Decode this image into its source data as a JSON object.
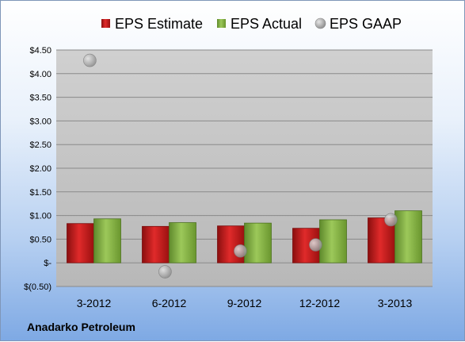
{
  "company": "Anadarko Petroleum",
  "colors": {
    "estimate": "#cc1c1c",
    "actual": "#86b446",
    "gaap": "#a6a6a6",
    "plot_bg": "#c0c0c0"
  },
  "chart_data": {
    "type": "bar",
    "categories": [
      "3-2012",
      "6-2012",
      "9-2012",
      "12-2012",
      "3-2013"
    ],
    "series": [
      {
        "name": "EPS Estimate",
        "kind": "bar",
        "values": [
          0.83,
          0.77,
          0.78,
          0.73,
          0.95
        ]
      },
      {
        "name": "EPS Actual",
        "kind": "bar",
        "values": [
          0.93,
          0.85,
          0.84,
          0.91,
          1.1
        ]
      },
      {
        "name": "EPS GAAP",
        "kind": "point",
        "values": [
          4.28,
          -0.19,
          0.25,
          0.38,
          0.91
        ]
      }
    ],
    "yticks": [
      "$(0.50)",
      "$-",
      "$0.50",
      "$1.00",
      "$1.50",
      "$2.00",
      "$2.50",
      "$3.00",
      "$3.50",
      "$4.00",
      "$4.50"
    ],
    "ylim": [
      -0.5,
      4.5
    ],
    "grid": true,
    "legend_position": "top"
  }
}
